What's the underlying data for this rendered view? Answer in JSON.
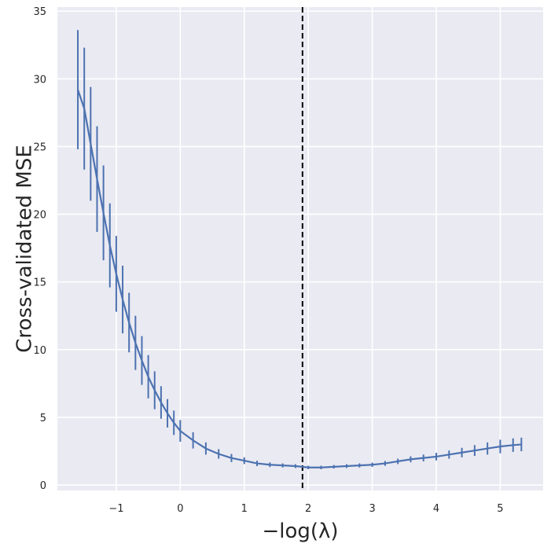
{
  "chart_data": {
    "type": "line",
    "title": "",
    "xlabel": "−log(λ)",
    "ylabel": "Cross-validated MSE",
    "xlim": [
      -1.92,
      5.67
    ],
    "ylim": [
      -0.4,
      35.3
    ],
    "xticks": [
      -1,
      0,
      1,
      2,
      3,
      4,
      5
    ],
    "xtick_labels": [
      "−1",
      "0",
      "1",
      "2",
      "3",
      "4",
      "5"
    ],
    "yticks": [
      0,
      5,
      10,
      15,
      20,
      25,
      30,
      35
    ],
    "ytick_labels": [
      "0",
      "5",
      "10",
      "15",
      "20",
      "25",
      "30",
      "35"
    ],
    "grid": true,
    "vline_x": 1.91,
    "series": [
      {
        "color": "#4c72b0",
        "x": [
          -1.6,
          -1.5,
          -1.4,
          -1.3,
          -1.2,
          -1.1,
          -1.0,
          -0.9,
          -0.8,
          -0.7,
          -0.6,
          -0.5,
          -0.4,
          -0.3,
          -0.2,
          -0.1,
          0.0,
          0.2,
          0.4,
          0.6,
          0.8,
          1.0,
          1.2,
          1.4,
          1.6,
          1.8,
          2.0,
          2.2,
          2.4,
          2.6,
          2.8,
          3.0,
          3.2,
          3.4,
          3.6,
          3.8,
          4.0,
          4.2,
          4.4,
          4.6,
          4.8,
          5.0,
          5.2,
          5.33
        ],
        "y": [
          29.2,
          27.8,
          25.2,
          22.6,
          20.1,
          17.7,
          15.6,
          13.7,
          12.0,
          10.5,
          9.2,
          8.0,
          7.0,
          6.1,
          5.3,
          4.6,
          4.0,
          3.3,
          2.7,
          2.3,
          2.0,
          1.8,
          1.6,
          1.5,
          1.45,
          1.4,
          1.3,
          1.3,
          1.35,
          1.4,
          1.45,
          1.5,
          1.6,
          1.75,
          1.9,
          2.0,
          2.1,
          2.25,
          2.4,
          2.55,
          2.7,
          2.85,
          2.95,
          3.0
        ],
        "err": [
          4.4,
          4.5,
          4.2,
          3.9,
          3.5,
          3.1,
          2.8,
          2.5,
          2.2,
          2.0,
          1.8,
          1.6,
          1.4,
          1.2,
          1.05,
          0.9,
          0.8,
          0.6,
          0.45,
          0.35,
          0.3,
          0.25,
          0.2,
          0.17,
          0.15,
          0.14,
          0.13,
          0.13,
          0.13,
          0.14,
          0.15,
          0.16,
          0.18,
          0.2,
          0.22,
          0.25,
          0.28,
          0.3,
          0.35,
          0.4,
          0.45,
          0.5,
          0.5,
          0.5
        ]
      }
    ]
  }
}
